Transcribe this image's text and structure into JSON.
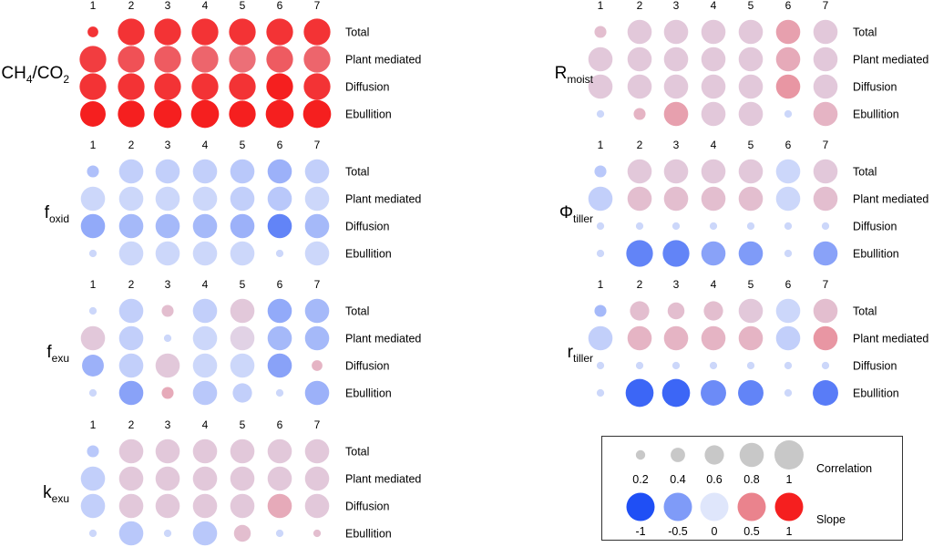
{
  "chart_data": {
    "type": "bubble-matrix",
    "columns": [
      "1",
      "2",
      "3",
      "4",
      "5",
      "6",
      "7"
    ],
    "rows": [
      "Total",
      "Plant mediated",
      "Diffusion",
      "Ebullition"
    ],
    "panels": [
      {
        "id": "ch4co2",
        "label_parts": [
          {
            "t": "CH"
          },
          {
            "t": "4",
            "s": "sub"
          },
          {
            "t": "/CO"
          },
          {
            "t": "2",
            "s": "sub"
          }
        ],
        "cells": [
          [
            [
              0.25,
              0.9
            ],
            [
              0.9,
              0.9
            ],
            [
              0.9,
              0.9
            ],
            [
              0.9,
              0.9
            ],
            [
              0.9,
              0.9
            ],
            [
              0.9,
              0.9
            ],
            [
              0.9,
              0.9
            ]
          ],
          [
            [
              0.9,
              0.85
            ],
            [
              0.9,
              0.75
            ],
            [
              0.9,
              0.7
            ],
            [
              0.9,
              0.65
            ],
            [
              0.9,
              0.6
            ],
            [
              0.9,
              0.7
            ],
            [
              0.9,
              0.65
            ]
          ],
          [
            [
              0.9,
              0.9
            ],
            [
              0.9,
              0.9
            ],
            [
              0.9,
              0.9
            ],
            [
              0.9,
              0.9
            ],
            [
              0.9,
              0.9
            ],
            [
              0.9,
              1.0
            ],
            [
              0.9,
              0.9
            ]
          ],
          [
            [
              0.85,
              1.0
            ],
            [
              0.9,
              1.0
            ],
            [
              0.95,
              1.0
            ],
            [
              0.95,
              1.0
            ],
            [
              0.9,
              1.0
            ],
            [
              0.95,
              1.0
            ],
            [
              0.95,
              1.0
            ]
          ]
        ]
      },
      {
        "id": "foxid",
        "label_parts": [
          {
            "t": "f"
          },
          {
            "t": "oxid",
            "s": "sub"
          }
        ],
        "cells": [
          [
            [
              0.3,
              -0.25
            ],
            [
              0.8,
              -0.15
            ],
            [
              0.8,
              -0.15
            ],
            [
              0.8,
              -0.15
            ],
            [
              0.8,
              -0.2
            ],
            [
              0.8,
              -0.35
            ],
            [
              0.8,
              -0.15
            ]
          ],
          [
            [
              0.8,
              -0.1
            ],
            [
              0.8,
              -0.1
            ],
            [
              0.8,
              -0.1
            ],
            [
              0.8,
              -0.1
            ],
            [
              0.8,
              -0.15
            ],
            [
              0.8,
              -0.2
            ],
            [
              0.8,
              -0.1
            ]
          ],
          [
            [
              0.8,
              -0.4
            ],
            [
              0.8,
              -0.3
            ],
            [
              0.8,
              -0.3
            ],
            [
              0.8,
              -0.3
            ],
            [
              0.8,
              -0.35
            ],
            [
              0.8,
              -0.65
            ],
            [
              0.8,
              -0.3
            ]
          ],
          [
            [
              0.12,
              -0.1
            ],
            [
              0.8,
              -0.1
            ],
            [
              0.8,
              -0.1
            ],
            [
              0.8,
              -0.1
            ],
            [
              0.8,
              -0.1
            ],
            [
              0.12,
              -0.1
            ],
            [
              0.8,
              -0.1
            ]
          ]
        ]
      },
      {
        "id": "fexu",
        "label_parts": [
          {
            "t": "f"
          },
          {
            "t": "exu",
            "s": "sub"
          }
        ],
        "cells": [
          [
            [
              0.12,
              -0.1
            ],
            [
              0.8,
              -0.15
            ],
            [
              0.3,
              0.2
            ],
            [
              0.8,
              -0.15
            ],
            [
              0.8,
              0.15
            ],
            [
              0.8,
              -0.4
            ],
            [
              0.8,
              -0.3
            ]
          ],
          [
            [
              0.8,
              0.15
            ],
            [
              0.8,
              -0.15
            ],
            [
              0.12,
              -0.1
            ],
            [
              0.8,
              -0.1
            ],
            [
              0.8,
              0.1
            ],
            [
              0.8,
              -0.3
            ],
            [
              0.8,
              -0.3
            ]
          ],
          [
            [
              0.7,
              -0.35
            ],
            [
              0.8,
              -0.15
            ],
            [
              0.8,
              0.15
            ],
            [
              0.8,
              -0.1
            ],
            [
              0.8,
              -0.1
            ],
            [
              0.8,
              -0.45
            ],
            [
              0.25,
              0.25
            ]
          ],
          [
            [
              0.12,
              -0.1
            ],
            [
              0.8,
              -0.45
            ],
            [
              0.3,
              0.3
            ],
            [
              0.8,
              -0.2
            ],
            [
              0.6,
              -0.15
            ],
            [
              0.12,
              -0.1
            ],
            [
              0.8,
              -0.35
            ]
          ]
        ]
      },
      {
        "id": "kexu",
        "label_parts": [
          {
            "t": "k"
          },
          {
            "t": "exu",
            "s": "sub"
          }
        ],
        "cells": [
          [
            [
              0.3,
              -0.2
            ],
            [
              0.8,
              0.15
            ],
            [
              0.8,
              0.15
            ],
            [
              0.8,
              0.15
            ],
            [
              0.8,
              0.15
            ],
            [
              0.8,
              0.15
            ],
            [
              0.8,
              0.15
            ]
          ],
          [
            [
              0.8,
              -0.15
            ],
            [
              0.8,
              0.15
            ],
            [
              0.8,
              0.15
            ],
            [
              0.8,
              0.15
            ],
            [
              0.8,
              0.15
            ],
            [
              0.8,
              0.15
            ],
            [
              0.8,
              0.15
            ]
          ],
          [
            [
              0.8,
              -0.15
            ],
            [
              0.8,
              0.15
            ],
            [
              0.8,
              0.15
            ],
            [
              0.8,
              0.15
            ],
            [
              0.8,
              0.15
            ],
            [
              0.8,
              0.3
            ],
            [
              0.8,
              0.15
            ]
          ],
          [
            [
              0.12,
              -0.1
            ],
            [
              0.8,
              -0.2
            ],
            [
              0.12,
              -0.1
            ],
            [
              0.8,
              -0.2
            ],
            [
              0.5,
              0.2
            ],
            [
              0.12,
              -0.1
            ],
            [
              0.12,
              0.2
            ]
          ]
        ]
      },
      {
        "id": "rmoist",
        "label_parts": [
          {
            "t": "R"
          },
          {
            "t": "moist",
            "s": "sub"
          }
        ],
        "cells": [
          [
            [
              0.3,
              0.2
            ],
            [
              0.8,
              0.15
            ],
            [
              0.8,
              0.15
            ],
            [
              0.8,
              0.15
            ],
            [
              0.8,
              0.15
            ],
            [
              0.8,
              0.35
            ],
            [
              0.8,
              0.15
            ]
          ],
          [
            [
              0.8,
              0.15
            ],
            [
              0.8,
              0.15
            ],
            [
              0.8,
              0.15
            ],
            [
              0.8,
              0.15
            ],
            [
              0.8,
              0.15
            ],
            [
              0.8,
              0.3
            ],
            [
              0.8,
              0.15
            ]
          ],
          [
            [
              0.8,
              0.15
            ],
            [
              0.8,
              0.15
            ],
            [
              0.8,
              0.15
            ],
            [
              0.8,
              0.15
            ],
            [
              0.8,
              0.15
            ],
            [
              0.8,
              0.4
            ],
            [
              0.8,
              0.15
            ]
          ],
          [
            [
              0.12,
              -0.1
            ],
            [
              0.3,
              0.25
            ],
            [
              0.8,
              0.35
            ],
            [
              0.8,
              0.15
            ],
            [
              0.8,
              0.15
            ],
            [
              0.12,
              -0.1
            ],
            [
              0.8,
              0.25
            ]
          ]
        ]
      },
      {
        "id": "phitiller",
        "label_parts": [
          {
            "t": "Φ"
          },
          {
            "t": "tiller",
            "s": "sub"
          }
        ],
        "cells": [
          [
            [
              0.3,
              -0.2
            ],
            [
              0.8,
              0.15
            ],
            [
              0.8,
              0.15
            ],
            [
              0.8,
              0.15
            ],
            [
              0.8,
              0.15
            ],
            [
              0.8,
              -0.1
            ],
            [
              0.8,
              0.15
            ]
          ],
          [
            [
              0.8,
              -0.15
            ],
            [
              0.8,
              0.2
            ],
            [
              0.8,
              0.2
            ],
            [
              0.8,
              0.2
            ],
            [
              0.8,
              0.2
            ],
            [
              0.8,
              -0.1
            ],
            [
              0.8,
              0.2
            ]
          ],
          [
            [
              0.12,
              -0.1
            ],
            [
              0.12,
              -0.1
            ],
            [
              0.12,
              -0.1
            ],
            [
              0.12,
              -0.1
            ],
            [
              0.12,
              -0.1
            ],
            [
              0.12,
              -0.1
            ],
            [
              0.12,
              -0.1
            ]
          ],
          [
            [
              0.12,
              -0.1
            ],
            [
              0.9,
              -0.65
            ],
            [
              0.9,
              -0.65
            ],
            [
              0.8,
              -0.45
            ],
            [
              0.8,
              -0.5
            ],
            [
              0.12,
              -0.1
            ],
            [
              0.8,
              -0.45
            ]
          ]
        ]
      },
      {
        "id": "rtiller",
        "label_parts": [
          {
            "t": "r"
          },
          {
            "t": "tiller",
            "s": "sub"
          }
        ],
        "cells": [
          [
            [
              0.3,
              -0.3
            ],
            [
              0.6,
              0.2
            ],
            [
              0.5,
              0.2
            ],
            [
              0.6,
              0.2
            ],
            [
              0.8,
              0.15
            ],
            [
              0.8,
              -0.1
            ],
            [
              0.8,
              0.2
            ]
          ],
          [
            [
              0.8,
              -0.15
            ],
            [
              0.8,
              0.25
            ],
            [
              0.8,
              0.25
            ],
            [
              0.8,
              0.25
            ],
            [
              0.8,
              0.25
            ],
            [
              0.8,
              -0.15
            ],
            [
              0.8,
              0.4
            ]
          ],
          [
            [
              0.12,
              -0.1
            ],
            [
              0.12,
              -0.1
            ],
            [
              0.12,
              -0.1
            ],
            [
              0.12,
              -0.1
            ],
            [
              0.12,
              -0.1
            ],
            [
              0.12,
              -0.1
            ],
            [
              0.12,
              -0.1
            ]
          ],
          [
            [
              0.12,
              -0.1
            ],
            [
              0.95,
              -0.85
            ],
            [
              0.95,
              -0.85
            ],
            [
              0.85,
              -0.6
            ],
            [
              0.85,
              -0.65
            ],
            [
              0.12,
              -0.1
            ],
            [
              0.85,
              -0.7
            ]
          ]
        ]
      }
    ],
    "legend": {
      "correlation": {
        "title": "Correlation",
        "values": [
          0.2,
          0.4,
          0.6,
          0.8,
          1
        ],
        "labels": [
          "0.2",
          "0.4",
          "0.6",
          "0.8",
          "1"
        ]
      },
      "slope": {
        "title": "Slope",
        "values": [
          -1,
          -0.5,
          0,
          0.5,
          1
        ],
        "labels": [
          "-1",
          "-0.5",
          "0",
          "0.5",
          "1"
        ]
      }
    },
    "size_encoding": "correlation",
    "color_encoding": "slope",
    "colors": {
      "negative": "#1f4ff5",
      "neutral": "#dfe6fb",
      "positive": "#f51f1f",
      "size_swatch": "#c8c8c8",
      "zero_fill": "#ffffff"
    }
  }
}
